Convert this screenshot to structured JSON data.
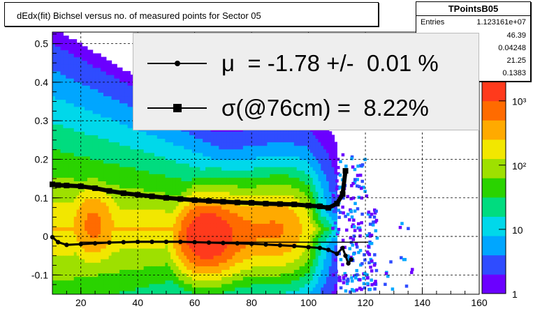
{
  "title": "dEdx(fit) Bichsel versus no. of measured points for Sector 05",
  "stats": {
    "name": "TPointsB05",
    "rows": [
      {
        "label": "Entries",
        "value": "1.123161e+07"
      },
      {
        "label": "",
        "value": "46.39"
      },
      {
        "label": "",
        "value": "0.04248"
      },
      {
        "label": "",
        "value": "21.25"
      },
      {
        "label": "",
        "value": "0.1383"
      }
    ]
  },
  "legend": {
    "mu": "μ  = -1.78 +/-  0.01 %",
    "sigma": "σ(@76cm) =  8.22%"
  },
  "colors": {
    "mean_markers": "#000000",
    "sigma_markers": "#000000",
    "palette": [
      "#6b00ff",
      "#2f4cff",
      "#00a6ff",
      "#00d8ea",
      "#00dc7f",
      "#2ad300",
      "#9ee000",
      "#f2e700",
      "#ffaa00",
      "#ff6b00",
      "#ff3a1c"
    ]
  },
  "chart_data": {
    "type": "heatmap",
    "xlim": [
      10,
      160
    ],
    "ylim": [
      -0.15,
      0.53
    ],
    "xticks": [
      20,
      40,
      60,
      80,
      100,
      120,
      140,
      160
    ],
    "yticks": [
      -0.1,
      0,
      0.1,
      0.2,
      0.3,
      0.4,
      0.5
    ],
    "colorbar": {
      "scale": "log",
      "min": 1,
      "max": 2000,
      "ticks": [
        "1",
        "10",
        "10²",
        "10³"
      ]
    },
    "grid": true,
    "series": [
      {
        "marker": "circle",
        "x": [
          10,
          12,
          15,
          20,
          25,
          30,
          35,
          40,
          45,
          50,
          55,
          60,
          65,
          70,
          75,
          80,
          85,
          90,
          95,
          100,
          104,
          107,
          110,
          112,
          113,
          114,
          115
        ],
        "y": [
          -0.002,
          -0.015,
          -0.022,
          -0.02,
          -0.018,
          -0.016,
          -0.015,
          -0.014,
          -0.014,
          -0.014,
          -0.014,
          -0.015,
          -0.016,
          -0.017,
          -0.018,
          -0.019,
          -0.021,
          -0.023,
          -0.025,
          -0.028,
          -0.03,
          -0.035,
          -0.045,
          -0.03,
          -0.05,
          -0.07,
          -0.06
        ]
      },
      {
        "marker": "square",
        "x": [
          10,
          12,
          15,
          20,
          25,
          30,
          35,
          40,
          45,
          50,
          55,
          60,
          65,
          70,
          75,
          80,
          85,
          90,
          95,
          100,
          104,
          107,
          110,
          112,
          113
        ],
        "y": [
          0.135,
          0.133,
          0.132,
          0.13,
          0.125,
          0.118,
          0.112,
          0.108,
          0.104,
          0.1,
          0.097,
          0.094,
          0.092,
          0.09,
          0.088,
          0.087,
          0.085,
          0.084,
          0.083,
          0.08,
          0.078,
          0.074,
          0.085,
          0.11,
          0.17
        ]
      },
      {
        "marker": "line",
        "x": [
          20,
          121
        ],
        "y": [
          -0.015,
          -0.015
        ]
      }
    ]
  }
}
